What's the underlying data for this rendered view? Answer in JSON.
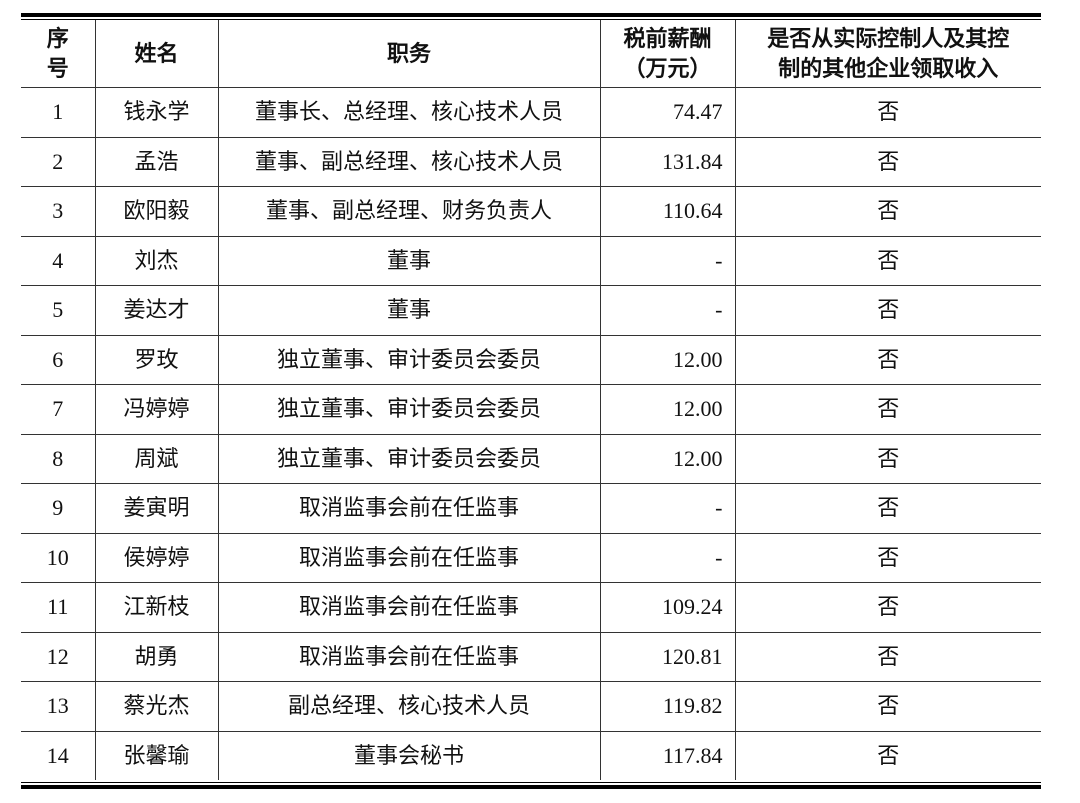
{
  "table": {
    "headers": [
      "序号",
      "姓名",
      "职务",
      "税前薪酬（万元）",
      "是否从实际控制人及其控制的其他企业领取收入"
    ],
    "header_lines": [
      [
        "序",
        "号"
      ],
      [
        "姓名"
      ],
      [
        "职务"
      ],
      [
        "税前薪酬",
        "（万元）"
      ],
      [
        "是否从实际控制人及其控",
        "制的其他企业领取收入"
      ]
    ],
    "rows": [
      [
        "1",
        "钱永学",
        "董事长、总经理、核心技术人员",
        "74.47",
        "否"
      ],
      [
        "2",
        "孟浩",
        "董事、副总经理、核心技术人员",
        "131.84",
        "否"
      ],
      [
        "3",
        "欧阳毅",
        "董事、副总经理、财务负责人",
        "110.64",
        "否"
      ],
      [
        "4",
        "刘杰",
        "董事",
        "-",
        "否"
      ],
      [
        "5",
        "姜达才",
        "董事",
        "-",
        "否"
      ],
      [
        "6",
        "罗玫",
        "独立董事、审计委员会委员",
        "12.00",
        "否"
      ],
      [
        "7",
        "冯婷婷",
        "独立董事、审计委员会委员",
        "12.00",
        "否"
      ],
      [
        "8",
        "周斌",
        "独立董事、审计委员会委员",
        "12.00",
        "否"
      ],
      [
        "9",
        "姜寅明",
        "取消监事会前在任监事",
        "-",
        "否"
      ],
      [
        "10",
        "侯婷婷",
        "取消监事会前在任监事",
        "-",
        "否"
      ],
      [
        "11",
        "江新枝",
        "取消监事会前在任监事",
        "109.24",
        "否"
      ],
      [
        "12",
        "胡勇",
        "取消监事会前在任监事",
        "120.81",
        "否"
      ],
      [
        "13",
        "蔡光杰",
        "副总经理、核心技术人员",
        "119.82",
        "否"
      ],
      [
        "14",
        "张馨瑜",
        "董事会秘书",
        "117.84",
        "否"
      ]
    ]
  }
}
